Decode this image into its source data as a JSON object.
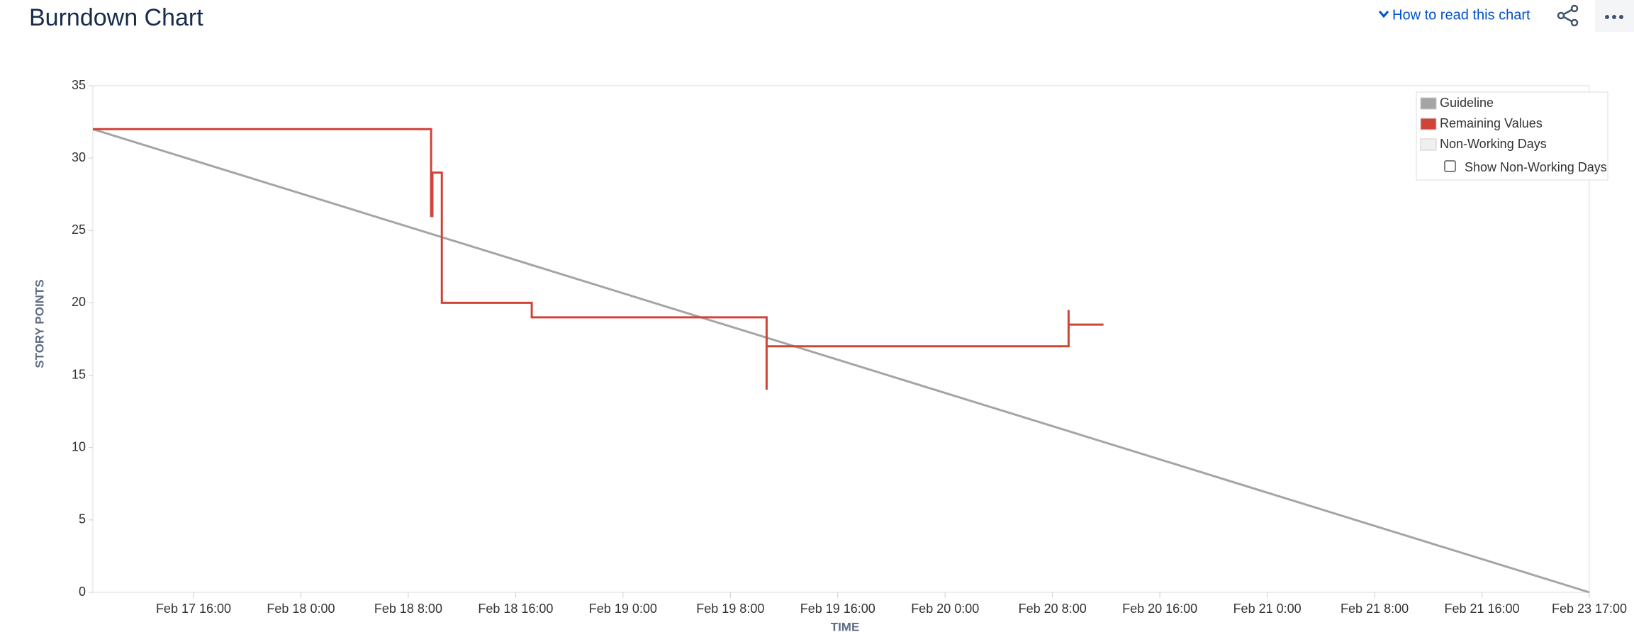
{
  "chart_data": {
    "type": "line",
    "title": "Burndown Chart",
    "header_link": "How to read this chart",
    "ylabel": "STORY POINTS",
    "xlabel": "TIME",
    "xlim": [
      8.5,
      120
    ],
    "xticks": [
      {
        "value": 16,
        "label": "Feb 17 16:00"
      },
      {
        "value": 24,
        "label": "Feb 18 0:00"
      },
      {
        "value": 32,
        "label": "Feb 18 8:00"
      },
      {
        "value": 40,
        "label": "Feb 18 16:00"
      },
      {
        "value": 48,
        "label": "Feb 19 0:00"
      },
      {
        "value": 56,
        "label": "Feb 19 8:00"
      },
      {
        "value": 64,
        "label": "Feb 19 16:00"
      },
      {
        "value": 72,
        "label": "Feb 20 0:00"
      },
      {
        "value": 80,
        "label": "Feb 20 8:00"
      },
      {
        "value": 88,
        "label": "Feb 20 16:00"
      },
      {
        "value": 96,
        "label": "Feb 21 0:00"
      },
      {
        "value": 104,
        "label": "Feb 21 8:00"
      },
      {
        "value": 112,
        "label": "Feb 21 16:00"
      },
      {
        "value": 120,
        "label": "Feb 23 17:00"
      }
    ],
    "ylim": [
      0,
      35
    ],
    "yticks": [
      0,
      5,
      10,
      15,
      20,
      25,
      30,
      35
    ],
    "series": [
      {
        "name": "Guideline",
        "color": "#a5a5a5",
        "x": [
          8.5,
          120
        ],
        "values": [
          32,
          0
        ]
      },
      {
        "name": "Remaining Values",
        "color": "#d04437",
        "x": [
          8.5,
          33.7,
          33.7,
          33.8,
          33.8,
          34.5,
          34.5,
          41.2,
          41.2,
          58.7,
          58.7,
          58.7,
          81.2,
          81.2,
          81.2,
          83.8
        ],
        "values": [
          32,
          32,
          26,
          26,
          29,
          29,
          20,
          20,
          19,
          19,
          14,
          17,
          17,
          19.5,
          18.5,
          18.5
        ]
      }
    ],
    "legend_extra": [
      {
        "name": "Non-Working Days",
        "color": "#f0f0f0"
      }
    ],
    "checkbox_label": "Show Non-Working Days"
  }
}
